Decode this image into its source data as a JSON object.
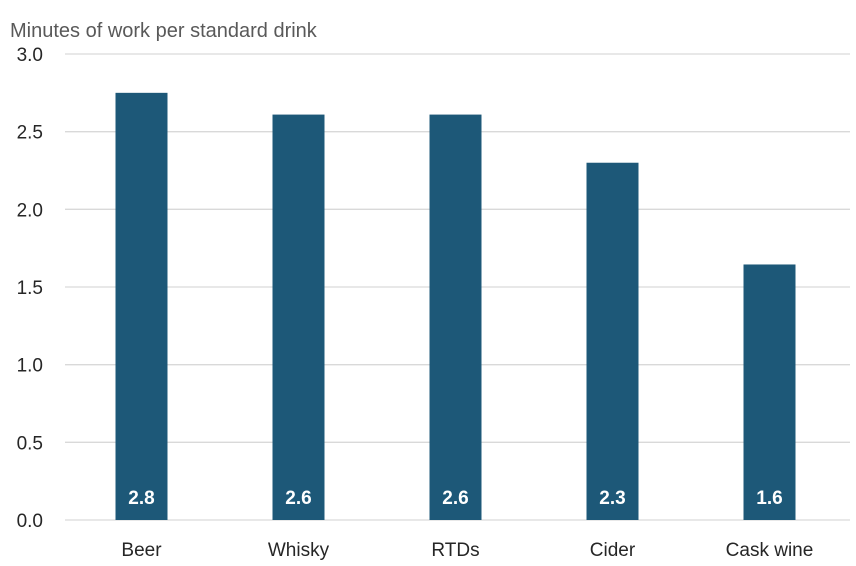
{
  "chart_data": {
    "type": "bar",
    "title": "Minutes of work per standard drink",
    "xlabel": "",
    "ylabel": "",
    "categories": [
      "Beer",
      "Whisky",
      "RTDs",
      "Cider",
      "Cask wine"
    ],
    "values": [
      2.75,
      2.61,
      2.61,
      2.3,
      1.645
    ],
    "data_labels": [
      "2.8",
      "2.6",
      "2.6",
      "2.3",
      "1.6"
    ],
    "ylim": [
      0,
      3.0
    ],
    "yticks": [
      "0.0",
      "0.5",
      "1.0",
      "1.5",
      "2.0",
      "2.5",
      "3.0"
    ],
    "grid": true,
    "legend": "none",
    "colors": {
      "bar": "#1d5878",
      "grid": "#d9d9d9",
      "text": "#262626",
      "title": "#595959",
      "data_label": "#ffffff"
    }
  }
}
